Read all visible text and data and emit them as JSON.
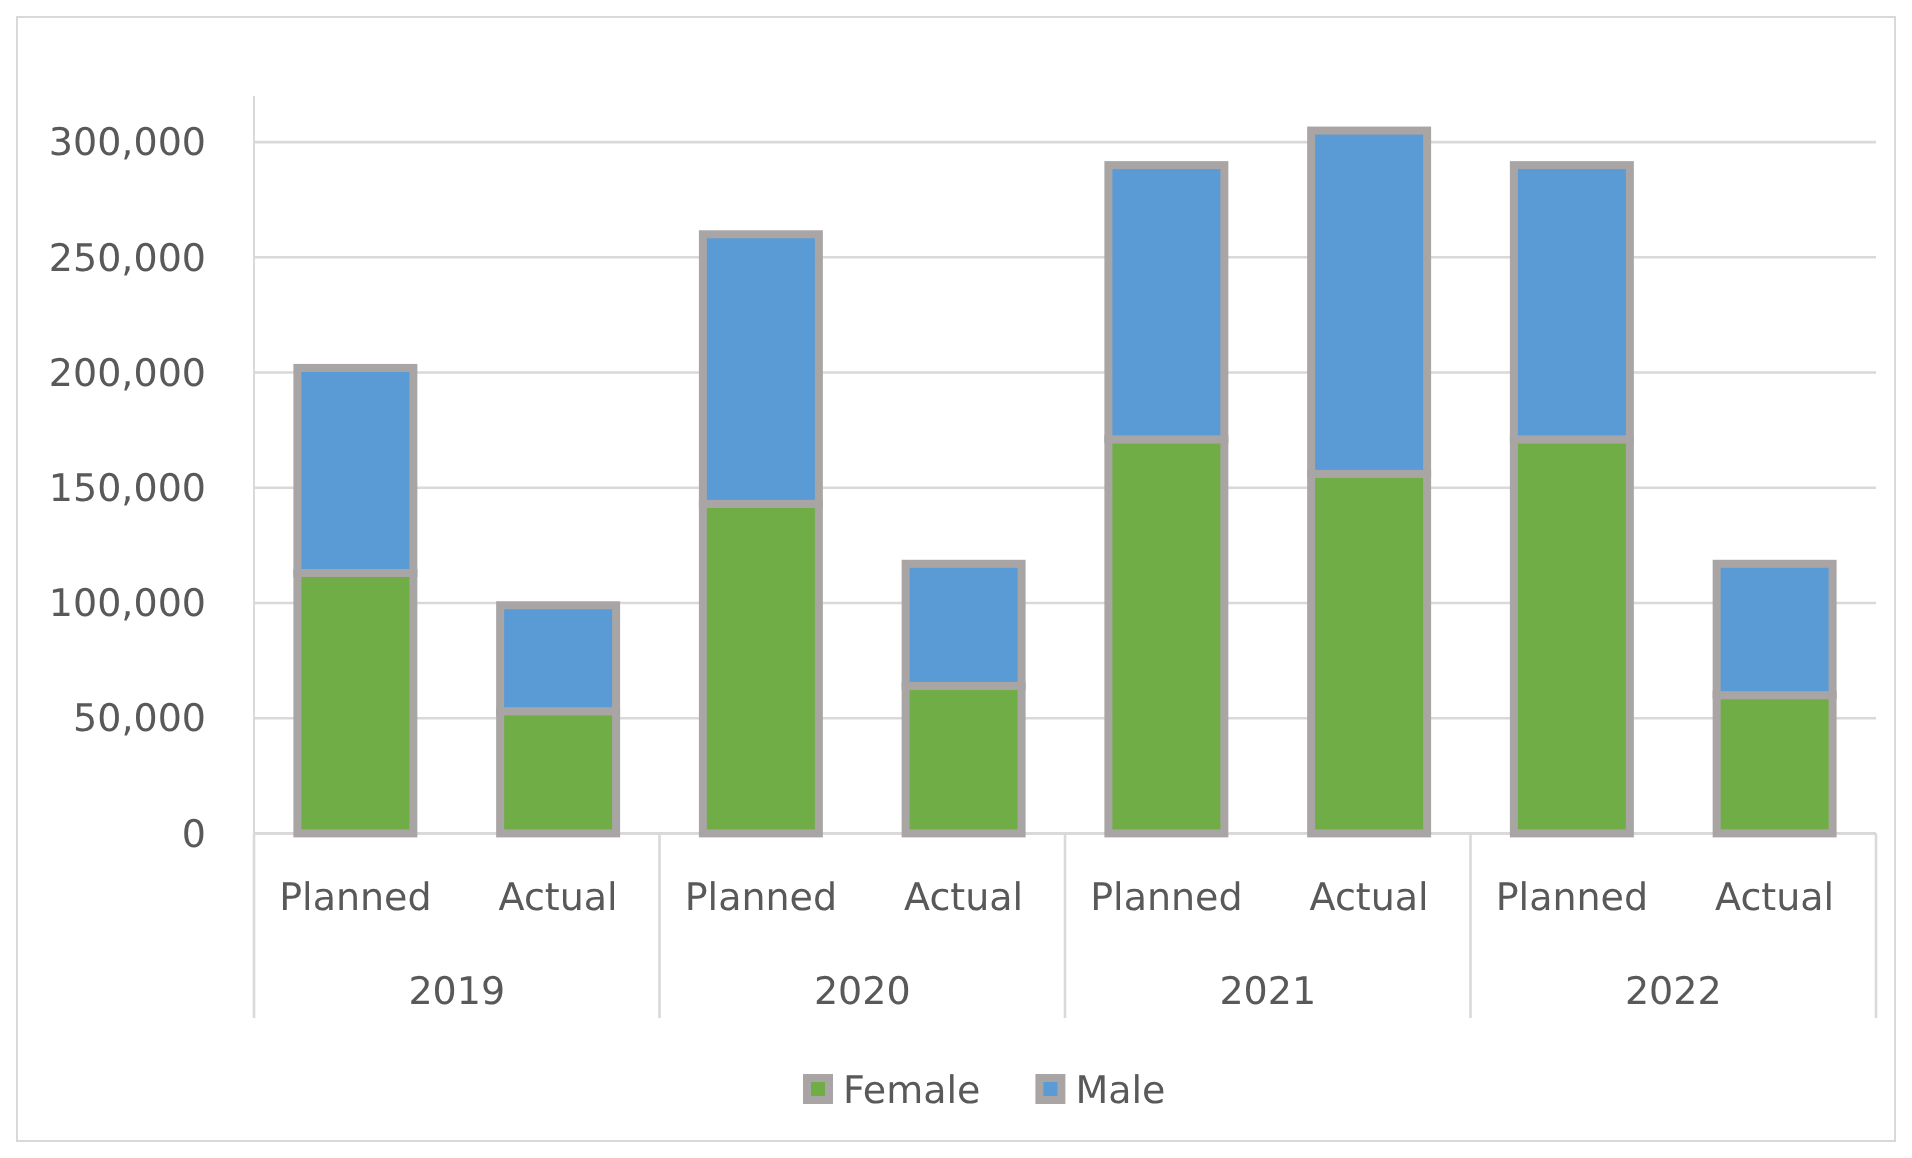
{
  "chart_data": {
    "type": "bar",
    "stacked": true,
    "categories": [
      "Planned",
      "Actual",
      "Planned",
      "Actual",
      "Planned",
      "Actual",
      "Planned",
      "Actual"
    ],
    "series": [
      {
        "name": "Female",
        "color": "#70ad47",
        "values": [
          113000,
          53000,
          143000,
          64000,
          171000,
          156000,
          171000,
          60000
        ]
      },
      {
        "name": "Male",
        "color": "#5b9bd5",
        "values": [
          89000,
          46000,
          117000,
          53000,
          119000,
          149000,
          119000,
          57000
        ]
      }
    ],
    "ylim": [
      0,
      320000
    ],
    "yticks": [
      0,
      {
        "value": 50000,
        "label": "50,000"
      },
      {
        "value": 100000,
        "label": "100,000"
      },
      {
        "value": 150000,
        "label": "150,000"
      },
      {
        "value": 200000,
        "label": "200,000"
      },
      {
        "value": 250000,
        "label": "250,000"
      },
      {
        "value": 300000,
        "label": "300,000"
      }
    ],
    "annotations": [
      "2019",
      "2020",
      "2021",
      "2022"
    ],
    "grid": "y",
    "legend": "bottom"
  }
}
